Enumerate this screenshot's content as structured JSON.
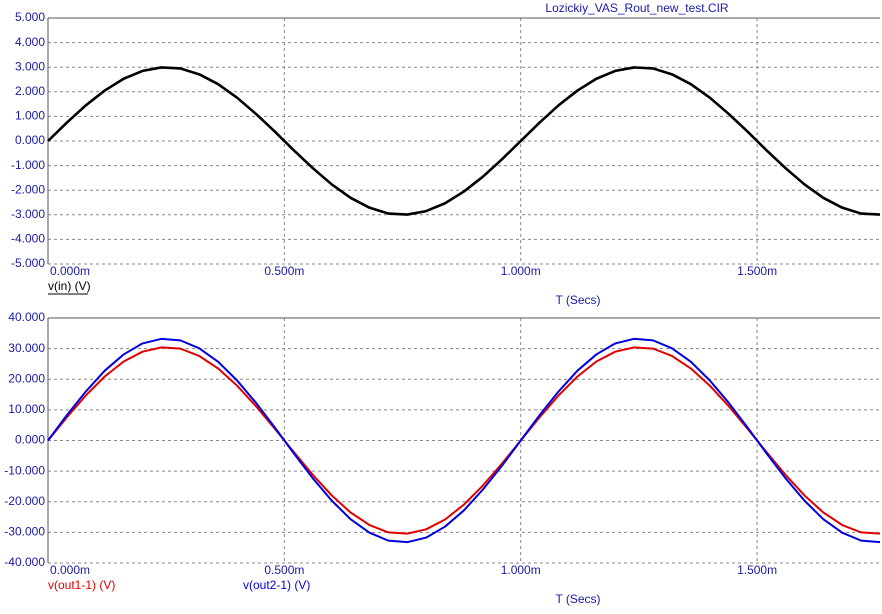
{
  "chart_data": [
    {
      "type": "line",
      "title": "Lozickiy_VAS_Rout_new_test.CIR",
      "x_label": "T (Secs)",
      "grid": true,
      "xlim": [
        0,
        1.76
      ],
      "ylim": [
        -5,
        5
      ],
      "xticks": [
        {
          "value": 0,
          "label": "0.000m"
        },
        {
          "value": 0.5,
          "label": "0.500m"
        },
        {
          "value": 1,
          "label": "1.000m"
        },
        {
          "value": 1.5,
          "label": "1.500m"
        }
      ],
      "yticks": [
        {
          "value": 5,
          "label": "5.000"
        },
        {
          "value": 4,
          "label": "4.000"
        },
        {
          "value": 3,
          "label": "3.000"
        },
        {
          "value": 2,
          "label": "2.000"
        },
        {
          "value": 1,
          "label": "1.000"
        },
        {
          "value": 0,
          "label": "0.000"
        },
        {
          "value": -1,
          "label": "-1.000"
        },
        {
          "value": -2,
          "label": "-2.000"
        },
        {
          "value": -3,
          "label": "-3.000"
        },
        {
          "value": -4,
          "label": "-4.000"
        },
        {
          "value": -5,
          "label": "-5.000"
        }
      ],
      "x": [
        0,
        0.04,
        0.08,
        0.12,
        0.16,
        0.2,
        0.24,
        0.28,
        0.32,
        0.36,
        0.4,
        0.44,
        0.48,
        0.52,
        0.56,
        0.6,
        0.64,
        0.68,
        0.72,
        0.76,
        0.8,
        0.84,
        0.88,
        0.92,
        0.96,
        1,
        1.04,
        1.08,
        1.12,
        1.16,
        1.2,
        1.24,
        1.28,
        1.32,
        1.36,
        1.4,
        1.44,
        1.48,
        1.52,
        1.56,
        1.6,
        1.64,
        1.68,
        1.72,
        1.76
      ],
      "series": [
        {
          "name": "v(in) (V)",
          "color": "#000000",
          "values": [
            0,
            0.75,
            1.45,
            2.05,
            2.53,
            2.85,
            2.99,
            2.95,
            2.71,
            2.31,
            1.76,
            1.1,
            0.38,
            -0.38,
            -1.1,
            -1.76,
            -2.31,
            -2.71,
            -2.95,
            -2.99,
            -2.85,
            -2.53,
            -2.05,
            -1.45,
            -0.75,
            0,
            0.75,
            1.45,
            2.05,
            2.53,
            2.85,
            2.99,
            2.95,
            2.71,
            2.31,
            1.76,
            1.1,
            0.38,
            -0.38,
            -1.1,
            -1.76,
            -2.31,
            -2.71,
            -2.95,
            -2.99
          ]
        }
      ]
    },
    {
      "type": "line",
      "x_label": "T (Secs)",
      "grid": true,
      "xlim": [
        0,
        1.76
      ],
      "ylim": [
        -40,
        40
      ],
      "xticks": [
        {
          "value": 0,
          "label": "0.000m"
        },
        {
          "value": 0.5,
          "label": "0.500m"
        },
        {
          "value": 1,
          "label": "1.000m"
        },
        {
          "value": 1.5,
          "label": "1.500m"
        }
      ],
      "yticks": [
        {
          "value": 40,
          "label": "40.000"
        },
        {
          "value": 30,
          "label": "30.000"
        },
        {
          "value": 20,
          "label": "20.000"
        },
        {
          "value": 10,
          "label": "10.000"
        },
        {
          "value": 0,
          "label": "0.000"
        },
        {
          "value": -10,
          "label": "-10.000"
        },
        {
          "value": -20,
          "label": "-20.000"
        },
        {
          "value": -30,
          "label": "-30.000"
        },
        {
          "value": -40,
          "label": "-40.000"
        }
      ],
      "x": [
        0,
        0.04,
        0.08,
        0.12,
        0.16,
        0.2,
        0.24,
        0.28,
        0.32,
        0.36,
        0.4,
        0.44,
        0.48,
        0.52,
        0.56,
        0.6,
        0.64,
        0.68,
        0.72,
        0.76,
        0.8,
        0.84,
        0.88,
        0.92,
        0.96,
        1,
        1.04,
        1.08,
        1.12,
        1.16,
        1.2,
        1.24,
        1.28,
        1.32,
        1.36,
        1.4,
        1.44,
        1.48,
        1.52,
        1.56,
        1.6,
        1.64,
        1.68,
        1.72,
        1.76
      ],
      "series": [
        {
          "name": "v(out1-1) (V)",
          "color": "#e00000",
          "values": [
            0,
            7.6,
            14.7,
            20.9,
            25.8,
            29.0,
            30.4,
            30.0,
            27.6,
            23.5,
            17.9,
            11.2,
            3.8,
            -3.8,
            -11.2,
            -17.9,
            -23.5,
            -27.6,
            -30.0,
            -30.4,
            -29.0,
            -25.8,
            -20.9,
            -14.7,
            -7.6,
            0,
            7.6,
            14.7,
            20.9,
            25.8,
            29.0,
            30.4,
            30.0,
            27.6,
            23.5,
            17.9,
            11.2,
            3.8,
            -3.8,
            -11.2,
            -17.9,
            -23.5,
            -27.6,
            -30.0,
            -30.4
          ]
        },
        {
          "name": "v(out2-1) (V)",
          "color": "#0000e0",
          "values": [
            0,
            8.3,
            16.0,
            22.8,
            28.1,
            31.7,
            33.2,
            32.7,
            30.1,
            25.7,
            19.6,
            12.3,
            4.2,
            -4.2,
            -12.3,
            -19.6,
            -25.7,
            -30.1,
            -32.7,
            -33.2,
            -31.7,
            -28.1,
            -22.8,
            -16.0,
            -8.3,
            0,
            8.3,
            16.0,
            22.8,
            28.1,
            31.7,
            33.2,
            32.7,
            30.1,
            25.7,
            19.6,
            12.3,
            4.2,
            -4.2,
            -12.3,
            -19.6,
            -25.7,
            -30.1,
            -32.7,
            -33.2
          ]
        }
      ]
    }
  ]
}
